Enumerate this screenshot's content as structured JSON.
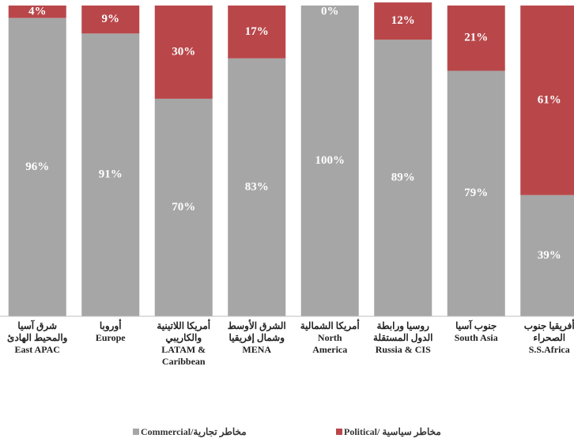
{
  "chart_data": {
    "type": "stacked_bar",
    "categories": [
      [
        "شرق آسيا",
        "والمحيط الهادئ",
        "East  APAC"
      ],
      [
        "أوروبا",
        "Europe"
      ],
      [
        "أمريكا اللاتينية",
        "والكاريبي",
        "LATAM &",
        "Caribbean"
      ],
      [
        "الشرق الأوسط",
        "وشمال إفريقيا",
        "MENA"
      ],
      [
        "أمريكا الشمالية",
        "North",
        "America"
      ],
      [
        "روسيا ورابطة",
        "الدول المستقلة",
        "Russia & CIS"
      ],
      [
        "جنوب آسيا",
        "South Asia"
      ],
      [
        "أفريقيا جنوب",
        "الصحراء",
        "S.S.Africa"
      ]
    ],
    "series": [
      {
        "name": "Commercial/مخاطر تجارية",
        "color": "#a6a6a6",
        "values": [
          96,
          91,
          70,
          83,
          100,
          89,
          79,
          39
        ],
        "value_labels": [
          "96%",
          "91%",
          "70%",
          "83%",
          "100%",
          "89%",
          "79%",
          "39%"
        ]
      },
      {
        "name": "Political/ مخاطر سياسية",
        "color": "#b9474a",
        "values": [
          4,
          9,
          30,
          17,
          0,
          12,
          21,
          61
        ],
        "value_labels": [
          "4%",
          "9%",
          "30%",
          "17%",
          "0%",
          "12%",
          "21%",
          "61%"
        ]
      }
    ],
    "ylim": [
      0,
      100
    ]
  }
}
